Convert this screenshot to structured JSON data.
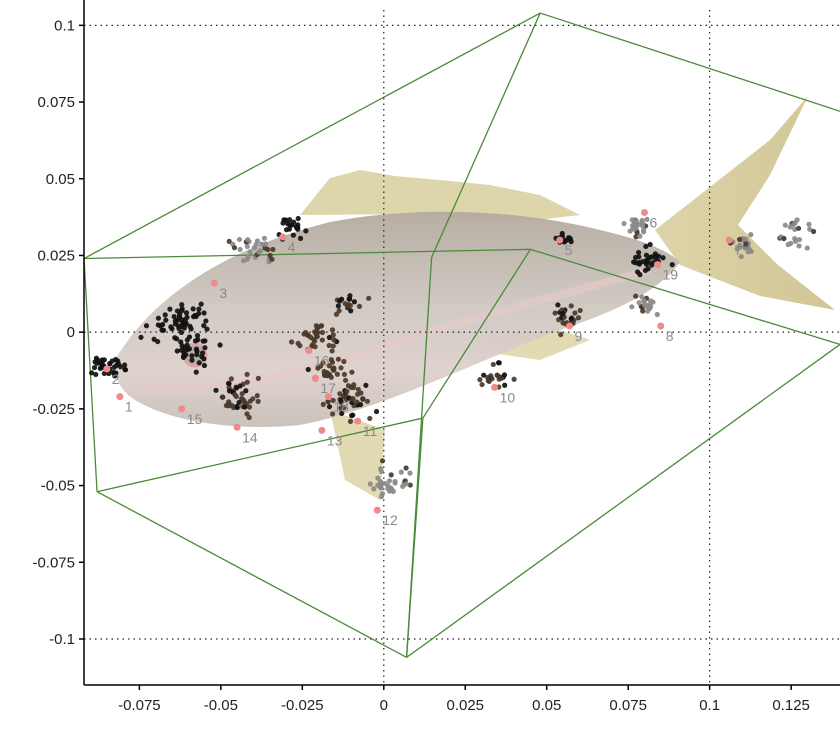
{
  "chart_data": {
    "type": "scatter",
    "title": "",
    "xlabel": "",
    "ylabel": "",
    "xlim": [
      -0.092,
      0.14
    ],
    "ylim": [
      -0.115,
      0.105
    ],
    "x_ticks": [
      -0.075,
      -0.05,
      -0.025,
      0,
      0.025,
      0.05,
      0.075,
      0.1,
      0.125
    ],
    "x_tick_labels": [
      "-0.075",
      "-0.05",
      "-0.025",
      "0",
      "0.025",
      "0.05",
      "0.075",
      "0.1",
      "0.125"
    ],
    "y_ticks": [
      0.1,
      0.075,
      0.05,
      0.025,
      0,
      -0.025,
      -0.05,
      -0.075,
      -0.1
    ],
    "y_tick_labels": [
      "0.1",
      "0.075",
      "0.05",
      "0.025",
      "0",
      "-0.025",
      "-0.05",
      "-0.075",
      "-0.1"
    ],
    "grid": "dotted lines at x=0, x=0.1, y=0.1, y=0, y=-0.1",
    "grid_x": [
      0,
      0.1
    ],
    "grid_y": [
      0.1,
      0,
      -0.1
    ],
    "background": "fish photograph (yellowtail-like snapper) behind points",
    "colors": {
      "box": "#4a8a3a",
      "landmark": "#f08a8a",
      "label": "#8a8a8a",
      "point_dark": "#111111",
      "point_brown": "#4a3a2a",
      "point_grey": "#8a8a8a",
      "grid": "#222222",
      "fish_body": "#c9c2b8",
      "fish_fin": "#d8cf9c"
    },
    "bounding_box": {
      "front_face": [
        [
          -0.092,
          0.024
        ],
        [
          -0.088,
          -0.052
        ],
        [
          0.007,
          -0.106
        ],
        [
          0.048,
          0.104
        ]
      ],
      "top_right_back": [
        0.14,
        0.072
      ],
      "right_mid": [
        0.14,
        -0.004
      ]
    },
    "landmarks": [
      {
        "id": "1",
        "x": -0.081,
        "y": -0.021
      },
      {
        "id": "2",
        "x": -0.085,
        "y": -0.012
      },
      {
        "id": "3",
        "x": -0.052,
        "y": 0.016
      },
      {
        "id": "4",
        "x": -0.031,
        "y": 0.031
      },
      {
        "id": "5",
        "x": 0.054,
        "y": 0.03
      },
      {
        "id": "6",
        "x": 0.08,
        "y": 0.039
      },
      {
        "id": "7",
        "x": 0.106,
        "y": 0.03
      },
      {
        "id": "8",
        "x": 0.085,
        "y": 0.002
      },
      {
        "id": "9",
        "x": 0.057,
        "y": 0.002
      },
      {
        "id": "10",
        "x": 0.034,
        "y": -0.018
      },
      {
        "id": "11",
        "x": -0.008,
        "y": -0.029
      },
      {
        "id": "12",
        "x": -0.002,
        "y": -0.058
      },
      {
        "id": "13",
        "x": -0.019,
        "y": -0.032
      },
      {
        "id": "14",
        "x": -0.045,
        "y": -0.031
      },
      {
        "id": "15",
        "x": -0.062,
        "y": -0.025
      },
      {
        "id": "16",
        "x": -0.023,
        "y": -0.006
      },
      {
        "id": "17",
        "x": -0.021,
        "y": -0.015
      },
      {
        "id": "18",
        "x": -0.017,
        "y": -0.021
      },
      {
        "id": "19",
        "x": 0.084,
        "y": 0.022
      }
    ],
    "point_clusters": [
      {
        "x": -0.085,
        "y": -0.011,
        "n": 38,
        "spread": 0.005,
        "color": "dark"
      },
      {
        "x": -0.063,
        "y": 0.003,
        "n": 55,
        "spread": 0.008,
        "color": "dark"
      },
      {
        "x": -0.058,
        "y": -0.006,
        "n": 30,
        "spread": 0.006,
        "color": "dark"
      },
      {
        "x": -0.045,
        "y": -0.021,
        "n": 45,
        "spread": 0.007,
        "color": "brown"
      },
      {
        "x": -0.04,
        "y": 0.027,
        "n": 30,
        "spread": 0.006,
        "color": "grey"
      },
      {
        "x": -0.028,
        "y": 0.034,
        "n": 22,
        "spread": 0.005,
        "color": "dark"
      },
      {
        "x": -0.021,
        "y": -0.001,
        "n": 35,
        "spread": 0.006,
        "color": "brown"
      },
      {
        "x": -0.012,
        "y": 0.009,
        "n": 18,
        "spread": 0.005,
        "color": "brown"
      },
      {
        "x": -0.016,
        "y": -0.012,
        "n": 30,
        "spread": 0.006,
        "color": "brown"
      },
      {
        "x": -0.01,
        "y": -0.022,
        "n": 45,
        "spread": 0.007,
        "color": "brown"
      },
      {
        "x": 0.003,
        "y": -0.049,
        "n": 35,
        "spread": 0.006,
        "color": "grey"
      },
      {
        "x": 0.034,
        "y": -0.014,
        "n": 22,
        "spread": 0.005,
        "color": "brown"
      },
      {
        "x": 0.056,
        "y": 0.005,
        "n": 28,
        "spread": 0.005,
        "color": "brown"
      },
      {
        "x": 0.055,
        "y": 0.03,
        "n": 14,
        "spread": 0.003,
        "color": "dark"
      },
      {
        "x": 0.077,
        "y": 0.034,
        "n": 25,
        "spread": 0.004,
        "color": "grey"
      },
      {
        "x": 0.081,
        "y": 0.024,
        "n": 30,
        "spread": 0.005,
        "color": "dark"
      },
      {
        "x": 0.08,
        "y": 0.009,
        "n": 22,
        "spread": 0.004,
        "color": "grey"
      },
      {
        "x": 0.11,
        "y": 0.029,
        "n": 20,
        "spread": 0.004,
        "color": "grey"
      },
      {
        "x": 0.127,
        "y": 0.032,
        "n": 22,
        "spread": 0.005,
        "color": "grey"
      }
    ]
  }
}
